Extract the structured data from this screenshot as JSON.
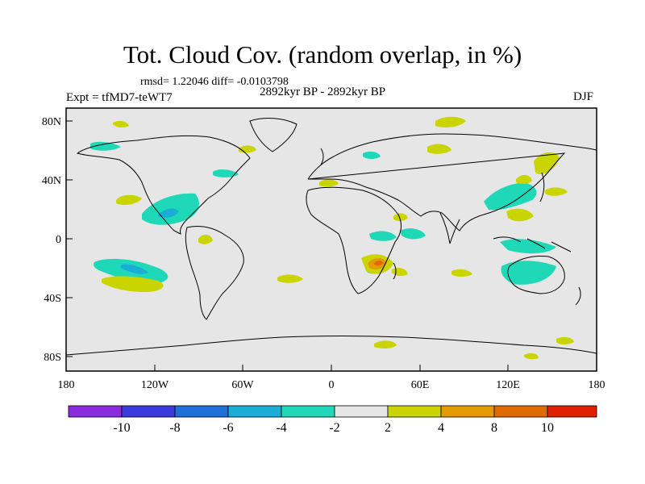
{
  "header": {
    "title": "Tot. Cloud Cov. (random overlap, in %)",
    "stats": "rmsd= 1.22046 diff= -0.0103798",
    "experiment": "Expt = tfMD7-teWT7",
    "period": "2892kyr BP - 2892kyr BP",
    "season": "DJF"
  },
  "map": {
    "background_color": "#e6e6e6",
    "coastline_color": "#000000",
    "x_ticks": [
      "180",
      "120W",
      "60W",
      "0",
      "60E",
      "120E",
      "180"
    ],
    "y_ticks": [
      "80N",
      "40N",
      "0",
      "40S",
      "80S"
    ]
  },
  "colorbar": {
    "colors": [
      "#8a2be2",
      "#3a3adf",
      "#1e6fd9",
      "#1aaed6",
      "#1fd8b8",
      "#e6e6e6",
      "#c9d400",
      "#e39c00",
      "#e06a00",
      "#e02000"
    ],
    "labels": [
      "-10",
      "-8",
      "-6",
      "-4",
      "-2",
      "2",
      "4",
      "8",
      "10"
    ]
  }
}
